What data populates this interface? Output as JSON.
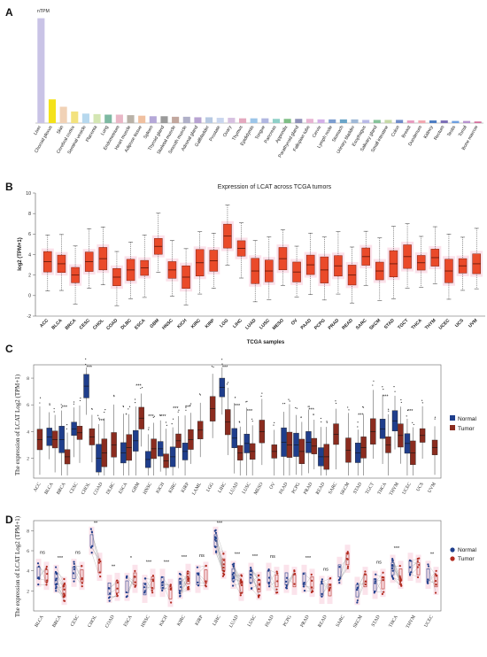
{
  "colors": {
    "normal": "#1f3e8c",
    "tumor": "#8b2c1f",
    "tumor_fill_b": "#ea4a2a",
    "whisker": "#333333",
    "pink_halo": "#f8c8d8"
  },
  "chart_data": [
    {
      "panel": "A",
      "type": "bar",
      "ylabel": "nTPM",
      "ylim": [
        0,
        200
      ],
      "categories": [
        "Liver",
        "Choroid plexus",
        "Skin",
        "Cerebral cortex",
        "Seminal vesicle",
        "Placenta",
        "Lung",
        "Endometrium",
        "Heart muscle",
        "Adipose tissue",
        "Spleen",
        "Thyroid gland",
        "Skeletal muscle",
        "Smooth muscle",
        "Adrenal gland",
        "Gallbladder",
        "Prostate",
        "Ovary",
        "Thymus",
        "Epididymis",
        "Tongue",
        "Pancreas",
        "Appendix",
        "Parathyroid gland",
        "Fallopian tube",
        "Cervix",
        "Lymph node",
        "Stomach",
        "Urinary bladder",
        "Esophagus",
        "Salivary gland",
        "Small intestine",
        "Colon",
        "Breast",
        "Duodenum",
        "Kidney",
        "Rectum",
        "Testis",
        "Tonsil",
        "Bone marrow"
      ],
      "values": [
        199,
        45,
        31,
        22,
        18,
        17,
        16,
        16,
        15,
        14,
        13,
        13,
        12,
        12,
        11,
        11,
        10,
        10,
        9,
        9,
        9,
        8,
        8,
        8,
        8,
        7,
        7,
        7,
        7,
        6,
        6,
        6,
        6,
        5,
        5,
        5,
        5,
        4,
        4,
        3
      ],
      "colors": [
        "#c9c3e6",
        "#f4e21a",
        "#f1d2b6",
        "#f3e27e",
        "#b7d8ee",
        "#d4e6b3",
        "#7db9a2",
        "#e9b7c6",
        "#b9b2a8",
        "#f0c0a0",
        "#b5a8d8",
        "#9a9a9a",
        "#c2a79e",
        "#b0b0c8",
        "#b8a3d2",
        "#b7c9e2",
        "#c9d6ee",
        "#d7c1e1",
        "#e4a9bf",
        "#9cc5e9",
        "#b1b7e1",
        "#8fd0c8",
        "#7fbf86",
        "#8f91b8",
        "#e8b5d3",
        "#d3b0e8",
        "#7d9ed0",
        "#6aa5c8",
        "#9fb8d6",
        "#b8b9e7",
        "#86c39a",
        "#c6d9a6",
        "#6f8cc9",
        "#e79cc0",
        "#f2a7b0",
        "#4d7dc3",
        "#7c6fb6",
        "#6d9fe0",
        "#b793cf",
        "#d56f9c"
      ]
    },
    {
      "panel": "B",
      "type": "box",
      "title": "Expression of LCAT across TCGA tumors",
      "ylabel": "log2 (TPM+1)",
      "xlabel": "TCGA samples",
      "ylim": [
        -2,
        10
      ],
      "yticks": [
        -2,
        0,
        2,
        4,
        6,
        8,
        10
      ],
      "categories": [
        "ACC",
        "BLCA",
        "BRCA",
        "CESC",
        "CHOL",
        "COAD",
        "DLBC",
        "ESCA",
        "GBM",
        "HNSC",
        "KICH",
        "KIRC",
        "KIRP",
        "LGG",
        "LIHC",
        "LUAD",
        "LUSC",
        "MESO",
        "OV",
        "PAAD",
        "PCPG",
        "PRAD",
        "READ",
        "SARC",
        "SKCM",
        "STAD",
        "TGCT",
        "THCA",
        "THYM",
        "UCEC",
        "UCS",
        "UVM"
      ],
      "median": [
        3.3,
        3.1,
        2.0,
        3.3,
        3.6,
        1.8,
        2.5,
        2.7,
        4.8,
        2.5,
        1.8,
        3.2,
        3.4,
        5.8,
        4.6,
        2.4,
        2.4,
        3.6,
        2.3,
        3.0,
        2.5,
        2.9,
        2.0,
        3.8,
        2.4,
        3.1,
        3.8,
        3.2,
        3.7,
        2.4,
        2.9,
        3.1
      ]
    },
    {
      "panel": "C",
      "type": "box",
      "ylabel": "The expression of LCAT Log2 (TPM+1)",
      "yticks": [
        2,
        4,
        6,
        8
      ],
      "ylim": [
        0.5,
        9
      ],
      "legend": [
        "Normal",
        "Tumor"
      ],
      "categories": [
        "ACC",
        "BLCA",
        "BRCA",
        "CESC",
        "CHOL",
        "COAD",
        "DLBC",
        "ESCA",
        "GBM",
        "HNSC",
        "KICH",
        "KIRC",
        "KIRP",
        "LAML",
        "LGG",
        "LIHC",
        "LUAD",
        "LUSC",
        "MESO",
        "OV",
        "PAAD",
        "PCPG",
        "PRAD",
        "READ",
        "SARC",
        "SKCM",
        "STAD",
        "TGCT",
        "THCA",
        "THYM",
        "UCEC",
        "UCS",
        "UVM"
      ],
      "normal_median": [
        null,
        3.6,
        3.4,
        4.2,
        7.4,
        2.0,
        null,
        2.4,
        3.3,
        1.9,
        2.7,
        2.1,
        2.5,
        null,
        null,
        7.3,
        3.5,
        3.1,
        null,
        null,
        3.2,
        3.0,
        3.2,
        2.1,
        null,
        null,
        2.4,
        null,
        4.2,
        4.8,
        3.1,
        null,
        null
      ],
      "tumor_median": [
        3.4,
        3.4,
        2.1,
        3.9,
        3.6,
        2.4,
        3.0,
        2.8,
        5.0,
        2.7,
        1.8,
        3.3,
        3.4,
        4.1,
        5.7,
        4.7,
        2.4,
        2.5,
        4.0,
        2.5,
        3.0,
        2.5,
        2.9,
        2.1,
        3.8,
        2.6,
        2.8,
        4.0,
        3.0,
        3.7,
        2.4,
        3.7,
        2.8
      ],
      "significance": [
        "",
        "",
        "***",
        "",
        "***",
        "***",
        "",
        "*",
        "***",
        "***",
        "***",
        "***",
        "***",
        "",
        "",
        "***",
        "***",
        "***",
        "",
        "",
        "",
        "",
        "***",
        "",
        "",
        "",
        "***",
        "",
        "***",
        "",
        "***",
        "",
        ""
      ]
    },
    {
      "panel": "D",
      "type": "paired",
      "ylabel": "The expression of LCAT Log2 (TPM+1)",
      "yticks": [
        2,
        4,
        6,
        8
      ],
      "ylim": [
        0,
        9
      ],
      "legend": [
        "Normal",
        "Tumor"
      ],
      "categories": [
        "BLCA",
        "BRCA",
        "CESC",
        "CHOL",
        "COAD",
        "ESCA",
        "HNSC",
        "KICH",
        "KIRC",
        "KIRP",
        "LIHC",
        "LUAD",
        "LUSC",
        "PAAD",
        "PCPG",
        "PRAD",
        "READ",
        "SARC",
        "SKCM",
        "STAD",
        "THCA",
        "THYM",
        "UCEC"
      ],
      "normal_median": [
        3.8,
        3.2,
        3.8,
        7.0,
        2.2,
        2.4,
        2.2,
        2.8,
        2.6,
        3.2,
        7.0,
        3.6,
        3.4,
        3.4,
        3.2,
        3.2,
        2.1,
        4.0,
        2.0,
        2.6,
        4.2,
        4.4,
        3.6
      ],
      "tumor_median": [
        3.5,
        2.0,
        3.5,
        4.4,
        2.4,
        3.2,
        2.8,
        1.8,
        3.3,
        3.5,
        4.6,
        2.4,
        2.5,
        3.0,
        3.0,
        2.8,
        2.1,
        5.2,
        3.0,
        2.8,
        3.6,
        4.2,
        3.0
      ],
      "significance": [
        "ns",
        "***",
        "ns",
        "**",
        "**",
        "*",
        "***",
        "***",
        "***",
        "ns",
        "***",
        "***",
        "***",
        "ns",
        "",
        "***",
        "ns",
        "",
        "",
        "ns",
        "***",
        "",
        "**"
      ]
    }
  ]
}
